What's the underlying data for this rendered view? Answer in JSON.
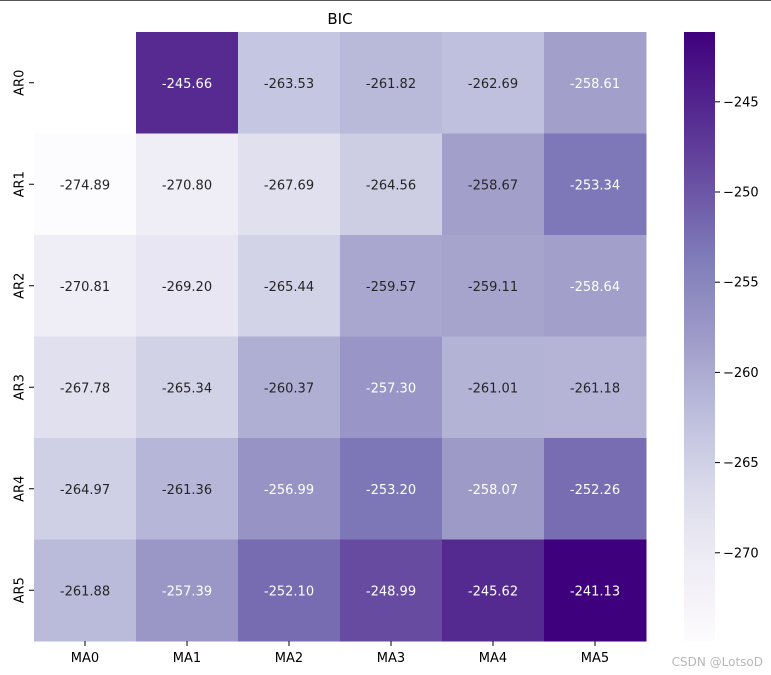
{
  "chart_data": {
    "type": "heatmap",
    "title": "BIC",
    "row_labels": [
      "AR0",
      "AR1",
      "AR2",
      "AR3",
      "AR4",
      "AR5"
    ],
    "col_labels": [
      "MA0",
      "MA1",
      "MA2",
      "MA3",
      "MA4",
      "MA5"
    ],
    "values": [
      [
        null,
        -245.66,
        -263.53,
        -261.82,
        -262.69,
        -258.61
      ],
      [
        -274.89,
        -270.8,
        -267.69,
        -264.56,
        -258.67,
        -253.34
      ],
      [
        -270.81,
        -269.2,
        -265.44,
        -259.57,
        -259.11,
        -258.64
      ],
      [
        -267.78,
        -265.34,
        -260.37,
        -257.3,
        -261.01,
        -261.18
      ],
      [
        -264.97,
        -261.36,
        -256.99,
        -253.2,
        -258.07,
        -252.26
      ],
      [
        -261.88,
        -257.39,
        -252.1,
        -248.99,
        -245.62,
        -241.13
      ]
    ],
    "value_format": "fixed2",
    "colormap": "Purples",
    "colorbar": {
      "ticks": [
        -245,
        -250,
        -255,
        -260,
        -265,
        -270
      ],
      "tick_labels": [
        "−245",
        "−250",
        "−255",
        "−260",
        "−265",
        "−270"
      ],
      "range": [
        -274.89,
        -241.13
      ]
    }
  },
  "watermark": "CSDN @LotsoD"
}
